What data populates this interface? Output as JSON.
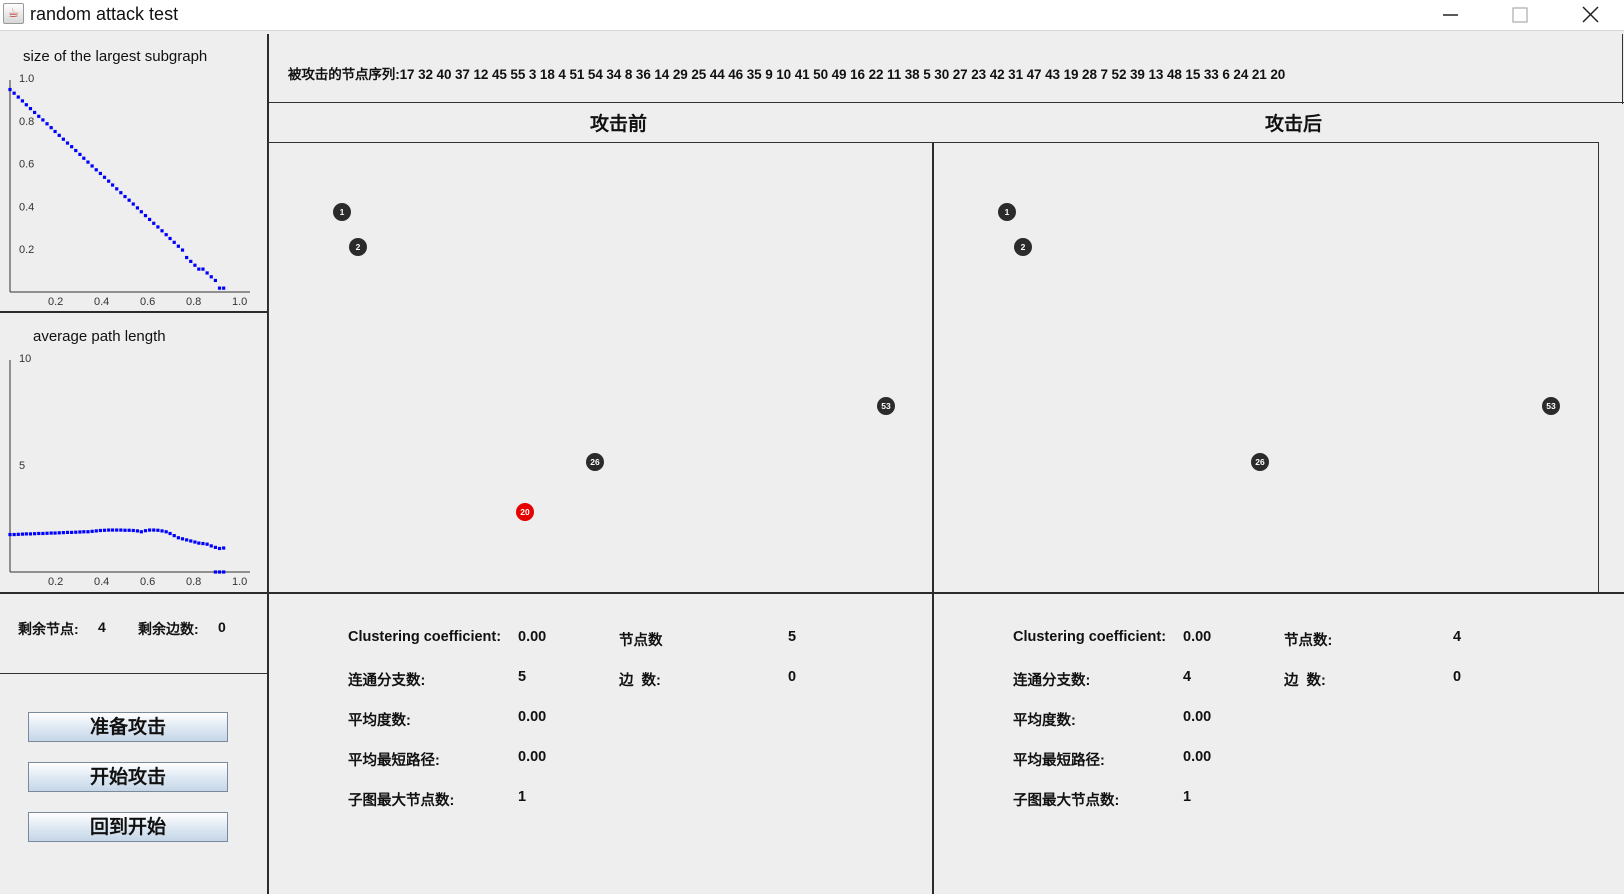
{
  "window": {
    "title": "random attack test",
    "icon": "java-cup-icon",
    "controls": {
      "minimize": "—",
      "maximize": "☐",
      "close": "✕"
    }
  },
  "charts": {
    "largest_subgraph": {
      "title": "size of the largest subgraph"
    },
    "avg_path": {
      "title": "average path length"
    }
  },
  "chart_data": [
    {
      "type": "scatter",
      "title": "size of the largest subgraph",
      "xlim": [
        0,
        1.0
      ],
      "ylim": [
        0,
        1.0
      ],
      "xticks": [
        "0.2",
        "0.4",
        "0.6",
        "0.8",
        "1.0"
      ],
      "yticks": [
        "1.0",
        "0.8",
        "0.6",
        "0.4",
        "0.2"
      ],
      "color": "#0000ff",
      "x": [
        0.0,
        0.018,
        0.036,
        0.054,
        0.071,
        0.089,
        0.107,
        0.125,
        0.143,
        0.161,
        0.179,
        0.196,
        0.214,
        0.232,
        0.25,
        0.268,
        0.286,
        0.304,
        0.321,
        0.339,
        0.357,
        0.375,
        0.393,
        0.411,
        0.429,
        0.446,
        0.464,
        0.482,
        0.5,
        0.518,
        0.536,
        0.554,
        0.571,
        0.589,
        0.607,
        0.625,
        0.643,
        0.661,
        0.679,
        0.696,
        0.714,
        0.732,
        0.75,
        0.768,
        0.786,
        0.804,
        0.821,
        0.839,
        0.857,
        0.875,
        0.893,
        0.911,
        0.929
      ],
      "y": [
        0.946,
        0.929,
        0.911,
        0.893,
        0.875,
        0.857,
        0.839,
        0.821,
        0.804,
        0.786,
        0.768,
        0.75,
        0.732,
        0.714,
        0.696,
        0.679,
        0.661,
        0.643,
        0.625,
        0.607,
        0.589,
        0.571,
        0.554,
        0.536,
        0.518,
        0.5,
        0.482,
        0.464,
        0.446,
        0.429,
        0.411,
        0.393,
        0.375,
        0.357,
        0.339,
        0.321,
        0.304,
        0.286,
        0.268,
        0.25,
        0.232,
        0.214,
        0.196,
        0.161,
        0.143,
        0.125,
        0.107,
        0.107,
        0.089,
        0.071,
        0.054,
        0.018,
        0.018
      ]
    },
    {
      "type": "scatter",
      "title": "average path length",
      "xlim": [
        0,
        1.0
      ],
      "ylim": [
        0,
        10
      ],
      "xticks": [
        "0.2",
        "0.4",
        "0.6",
        "0.8",
        "1.0"
      ],
      "yticks": [
        "10",
        "5"
      ],
      "color": "#0000ff",
      "x": [
        0.0,
        0.018,
        0.036,
        0.054,
        0.071,
        0.089,
        0.107,
        0.125,
        0.143,
        0.161,
        0.179,
        0.196,
        0.214,
        0.232,
        0.25,
        0.268,
        0.286,
        0.304,
        0.321,
        0.339,
        0.357,
        0.375,
        0.393,
        0.411,
        0.429,
        0.446,
        0.464,
        0.482,
        0.5,
        0.518,
        0.536,
        0.554,
        0.571,
        0.589,
        0.607,
        0.625,
        0.643,
        0.661,
        0.679,
        0.696,
        0.714,
        0.732,
        0.75,
        0.768,
        0.786,
        0.804,
        0.821,
        0.839,
        0.857,
        0.875,
        0.893,
        0.911,
        0.929
      ],
      "y": [
        1.75,
        1.75,
        1.76,
        1.77,
        1.78,
        1.78,
        1.79,
        1.8,
        1.8,
        1.81,
        1.82,
        1.82,
        1.83,
        1.84,
        1.85,
        1.85,
        1.86,
        1.87,
        1.88,
        1.88,
        1.9,
        1.92,
        1.94,
        1.95,
        1.96,
        1.96,
        1.96,
        1.96,
        1.95,
        1.95,
        1.94,
        1.92,
        1.88,
        1.93,
        1.96,
        1.96,
        1.95,
        1.92,
        1.88,
        1.8,
        1.7,
        1.6,
        1.55,
        1.5,
        1.45,
        1.4,
        1.35,
        1.33,
        1.3,
        1.22,
        1.15,
        1.1,
        1.12
      ],
      "extra_points": {
        "x": [
          0.893,
          0.911,
          0.929
        ],
        "y": [
          0,
          0,
          0
        ]
      }
    }
  ],
  "remaining": {
    "nodes_label": "剩余节点:",
    "nodes_value": "4",
    "edges_label": "剩余边数:",
    "edges_value": "0"
  },
  "buttons": {
    "prepare": "准备攻击",
    "start": "开始攻击",
    "back": "回到开始"
  },
  "sequence": {
    "label": "被攻击的节点序列:",
    "values": "17 32 40 37 12 45 55 3 18 4 51 54 34 8 36 14 29 25 44 46 35 9 10 41 50 49 16 22 11 38 5 30 27 23 42 31 47 43 19 28 7 52 39 13 48 15 33 6 24 21 20"
  },
  "before": {
    "heading": "攻击前",
    "nodes": [
      {
        "id": "1",
        "color": "#2b2b2b"
      },
      {
        "id": "2",
        "color": "#2b2b2b"
      },
      {
        "id": "53",
        "color": "#2b2b2b"
      },
      {
        "id": "26",
        "color": "#2b2b2b"
      },
      {
        "id": "20",
        "color": "#e60000"
      }
    ],
    "stats": {
      "cc_label": "Clustering coefficient:",
      "cc_value": "0.00",
      "nodes_label": "节点数",
      "nodes_value": "5",
      "comp_label": "连通分支数:",
      "comp_value": "5",
      "edges_label": "边  数:",
      "edges_value": "0",
      "deg_label": "平均度数:",
      "deg_value": "0.00",
      "path_label": "平均最短路径:",
      "path_value": "0.00",
      "max_label": "子图最大节点数:",
      "max_value": "1"
    }
  },
  "after": {
    "heading": "攻击后",
    "nodes": [
      {
        "id": "1",
        "color": "#2b2b2b"
      },
      {
        "id": "2",
        "color": "#2b2b2b"
      },
      {
        "id": "53",
        "color": "#2b2b2b"
      },
      {
        "id": "26",
        "color": "#2b2b2b"
      }
    ],
    "stats": {
      "cc_label": "Clustering coefficient:",
      "cc_value": "0.00",
      "nodes_label": "节点数:",
      "nodes_value": "4",
      "comp_label": "连通分支数:",
      "comp_value": "4",
      "edges_label": "边  数:",
      "edges_value": "0",
      "deg_label": "平均度数:",
      "deg_value": "0.00",
      "path_label": "平均最短路径:",
      "path_value": "0.00",
      "max_label": "子图最大节点数:",
      "max_value": "1"
    }
  }
}
